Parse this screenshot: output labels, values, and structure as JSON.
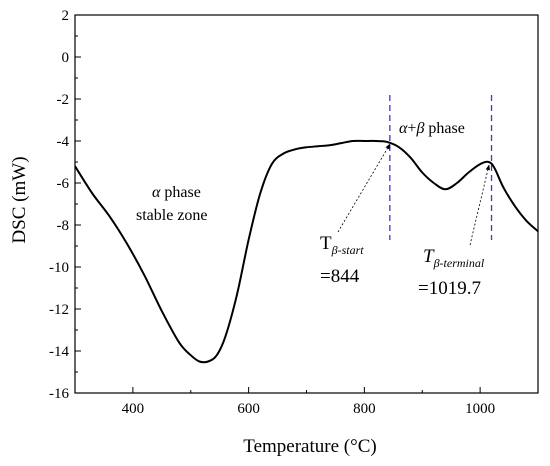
{
  "chart_data": {
    "type": "line",
    "xlabel": "Temperature (°C)",
    "ylabel": "DSC (mW)",
    "xlim": [
      300,
      1100
    ],
    "ylim": [
      -16,
      2
    ],
    "x_ticks": [
      400,
      600,
      800,
      1000
    ],
    "y_ticks": [
      2,
      0,
      -2,
      -4,
      -6,
      -8,
      -10,
      -12,
      -14,
      -16
    ],
    "grid": false,
    "legend": "none",
    "series": [
      {
        "color": "#000000",
        "x": [
          300,
          330,
          360,
          390,
          420,
          450,
          480,
          500,
          515,
          530,
          545,
          560,
          580,
          600,
          620,
          640,
          660,
          680,
          700,
          720,
          740,
          760,
          780,
          800,
          820,
          840,
          860,
          880,
          900,
          920,
          940,
          960,
          980,
          1000,
          1015,
          1025,
          1040,
          1060,
          1080,
          1100
        ],
        "y": [
          -5.2,
          -6.5,
          -7.6,
          -8.9,
          -10.4,
          -12.1,
          -13.6,
          -14.2,
          -14.5,
          -14.5,
          -14.2,
          -13.3,
          -11.3,
          -8.7,
          -6.5,
          -5.1,
          -4.6,
          -4.4,
          -4.3,
          -4.25,
          -4.2,
          -4.1,
          -4.0,
          -4.0,
          -4.0,
          -4.05,
          -4.3,
          -4.8,
          -5.5,
          -6.0,
          -6.3,
          -6.0,
          -5.5,
          -5.1,
          -5.0,
          -5.3,
          -6.2,
          -7.1,
          -7.8,
          -8.3
        ]
      }
    ],
    "markers": [
      {
        "x": 844,
        "color": "#3a3acc",
        "style": "dashed"
      },
      {
        "x": 1019.7,
        "color": "#3a3acc",
        "style": "dashed"
      }
    ],
    "annotations": {
      "alpha_phase_line1_sym": "α",
      "alpha_phase_line1_text": " phase",
      "alpha_phase_line2": "stable zone",
      "ab_phase_a": "α",
      "ab_phase_plus": "+",
      "ab_phase_b": "β",
      "ab_phase_text": " phase",
      "tstart_T": "T",
      "tstart_sub": "β-start",
      "tstart_value": "=844",
      "tterm_T": "T",
      "tterm_sub": "β-terminal",
      "tterm_value": "=1019.7"
    }
  }
}
